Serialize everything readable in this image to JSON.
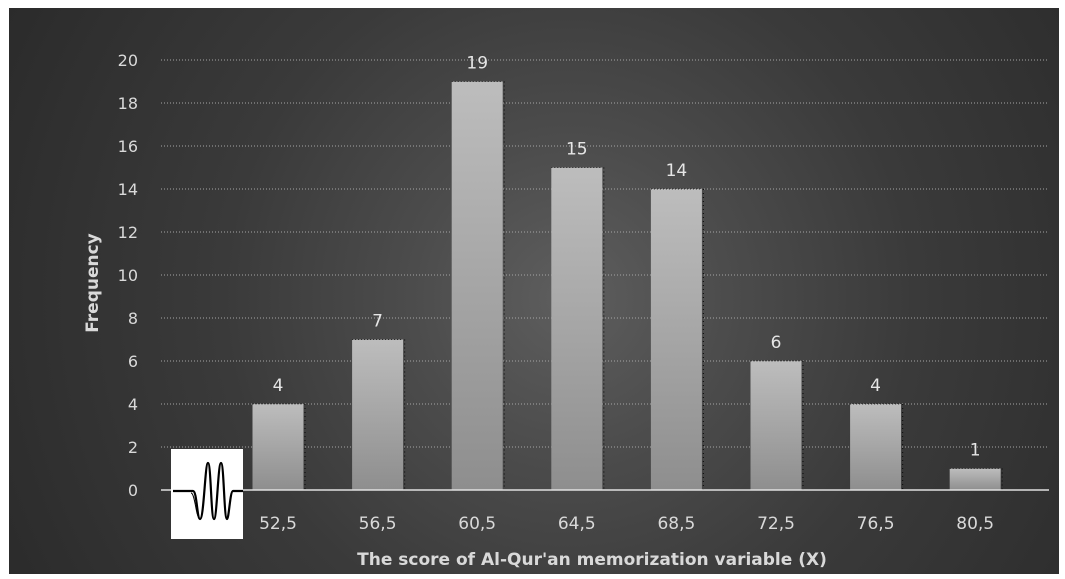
{
  "chart_data": {
    "type": "bar",
    "categories": [
      "52,5",
      "56,5",
      "60,5",
      "64,5",
      "68,5",
      "72,5",
      "76,5",
      "80,5"
    ],
    "values": [
      4,
      7,
      19,
      15,
      14,
      6,
      4,
      1
    ],
    "data_labels": [
      "4",
      "7",
      "19",
      "15",
      "14",
      "6",
      "4",
      "1"
    ],
    "y_ticks": [
      "0",
      "2",
      "4",
      "6",
      "8",
      "10",
      "12",
      "14",
      "16",
      "18",
      "20"
    ],
    "ylim": [
      0,
      20
    ],
    "xlabel": "The score of Al-Qur'an memorization variable (X)",
    "ylabel": "Frequency",
    "title": "",
    "grid": true,
    "legend": "none"
  },
  "colors": {
    "background": "#3a3a3a",
    "bar_top": "#b8b8b8",
    "bar_bottom": "#909090",
    "text": "#d9d9d9",
    "gridline": "#a6a6a6"
  },
  "icons": [
    "waveform-logo-icon"
  ]
}
